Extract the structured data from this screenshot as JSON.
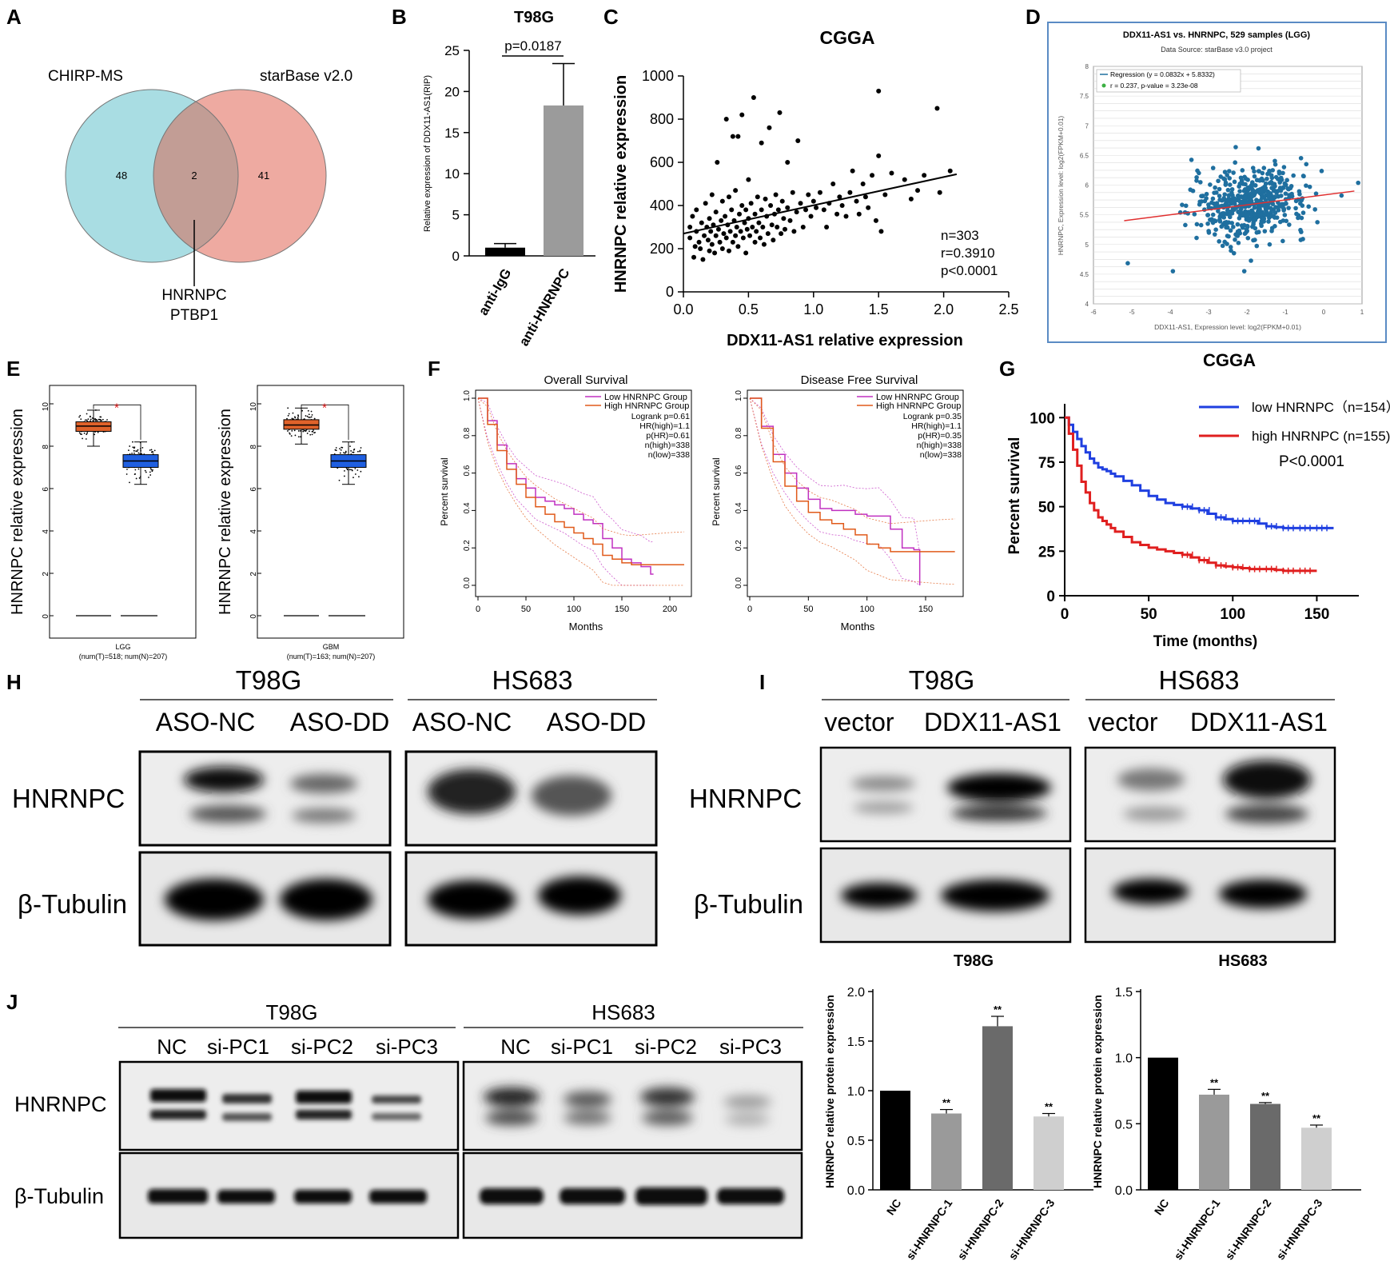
{
  "panels": {
    "A": "A",
    "B": "B",
    "C": "C",
    "D": "D",
    "E": "E",
    "F": "F",
    "G": "G",
    "H": "H",
    "I": "I",
    "J": "J"
  },
  "venn": {
    "left_label": "CHIRP-MS",
    "right_label": "starBase v2.0",
    "left_count": "48",
    "overlap_count": "2",
    "right_count": "41",
    "overlap_genes": [
      "HNRNPC",
      "PTBP1"
    ],
    "left_color": "#a9dde3",
    "right_color": "#eeaaa1",
    "overlap_color": "#c29d95"
  },
  "panelB": {
    "title": "T98G",
    "pvalue": "p=0.0187",
    "ylabel": "Relative expression of DDX11-AS1(RIP)",
    "yticks": [
      "0",
      "5",
      "10",
      "15",
      "20",
      "25"
    ]
  },
  "panelC": {
    "title": "CGGA",
    "xlabel": "DDX11-AS1 relative expression",
    "ylabel": "HNRNPC relative expression",
    "stats": [
      "n=303",
      "r=0.3910",
      "p<0.0001"
    ],
    "xticks": [
      "0.0",
      "0.5",
      "1.0",
      "1.5",
      "2.0",
      "2.5"
    ],
    "yticks": [
      "0",
      "200",
      "400",
      "600",
      "800",
      "1000"
    ]
  },
  "panelD": {
    "title": "DDX11-AS1 vs. HNRNPC, 529 samples (LGG)",
    "subtitle": "Data Source: starBase v3.0 project",
    "legend_regression": "Regression (y = 0.0832x + 5.8332)",
    "legend_r": "r = 0.237, p-value = 3.23e-08",
    "xlabel": "DDX11-AS1, Expression level: log2(FPKM+0.01)",
    "ylabel": "HNRNPC, Expression level: log2(FPKM+0.01)",
    "xticks": [
      "-6",
      "-5",
      "-4",
      "-3",
      "-2",
      "-1",
      "0",
      "1"
    ],
    "yticks": [
      "4",
      "4.5",
      "5",
      "5.5",
      "6",
      "6.5",
      "7",
      "7.5",
      "8"
    ],
    "point_color": "#1f6f9f",
    "line_color": "#e03030"
  },
  "panelE": {
    "ylabel": "HNRNPC relative expression",
    "left_xlabel": "LGG",
    "left_counts": "(num(T)=518; num(N)=207)",
    "right_xlabel": "GBM",
    "right_counts": "(num(T)=163; num(N)=207)",
    "star": "*",
    "yticks": [
      "0",
      "2",
      "4",
      "6",
      "8",
      "10"
    ],
    "tumor_color": "#e0622a",
    "normal_color": "#1f5fe0"
  },
  "panelF": {
    "title_left": "Overall Survival",
    "title_right": "Disease Free Survival",
    "legend_low": "Low HNRNPC Group",
    "legend_high": "High HNRNPC Group",
    "stats_left": [
      "Logrank p=0.61",
      "HR(high)=1.1",
      "p(HR)=0.61",
      "n(high)=338",
      "n(low)=338"
    ],
    "stats_right": [
      "Logrank p=0.35",
      "HR(high)=1.1",
      "p(HR)=0.35",
      "n(high)=338",
      "n(low)=338"
    ],
    "xlabel": "Months",
    "ylabel": "Percent survival",
    "xticks_left": [
      "0",
      "50",
      "100",
      "150",
      "200"
    ],
    "xticks_right": [
      "0",
      "50",
      "100",
      "150"
    ],
    "yticks": [
      "0.0",
      "0.2",
      "0.4",
      "0.6",
      "0.8",
      "1.0"
    ]
  },
  "panelG": {
    "title": "CGGA",
    "legend_low": "low HNRNPC（n=154）",
    "legend_high": "high HNRNPC (n=155)",
    "pvalue": "P<0.0001",
    "xlabel": "Time (months)",
    "ylabel": "Percent survival",
    "xticks": [
      "0",
      "50",
      "100",
      "150"
    ],
    "yticks": [
      "0",
      "25",
      "50",
      "75",
      "100"
    ],
    "low_color": "#1f3fe0",
    "high_color": "#e01f1f"
  },
  "panelH": {
    "cell1": "T98G",
    "cell2": "HS683",
    "lanes": [
      "ASO-NC",
      "ASO-DD",
      "ASO-NC",
      "ASO-DD"
    ],
    "row1": "HNRNPC",
    "row2": "β-Tubulin"
  },
  "panelI": {
    "cell1": "T98G",
    "cell2": "HS683",
    "lanes": [
      "vector",
      "DDX11-AS1",
      "vector",
      "DDX11-AS1"
    ],
    "row1": "HNRNPC",
    "row2": "β-Tubulin"
  },
  "panelJ": {
    "cell1": "T98G",
    "cell2": "HS683",
    "lanes1": [
      "NC",
      "si-PC1",
      "si-PC2",
      "si-PC3"
    ],
    "lanes2": [
      "NC",
      "si-PC1",
      "si-PC2",
      "si-PC3"
    ],
    "row1": "HNRNPC",
    "row2": "β-Tubulin"
  },
  "panelJbars": {
    "title1": "T98G",
    "title2": "HS683",
    "ylabel": "HNRNPC relative protein expression",
    "sig": "**",
    "yticks1": [
      "0.0",
      "0.5",
      "1.0",
      "1.5",
      "2.0"
    ],
    "yticks2": [
      "0.0",
      "0.5",
      "1.0",
      "1.5"
    ]
  },
  "chart_data": [
    {
      "type": "bar",
      "panel": "B",
      "title": "T98G",
      "categories": [
        "anti-IgG",
        "anti-HNRNPC"
      ],
      "values": [
        1.0,
        18.3
      ],
      "errors": [
        0.5,
        5.1
      ],
      "ylabel": "Relative expression of DDX11-AS1(RIP)",
      "ylim": [
        0,
        25
      ],
      "colors": [
        "#000000",
        "#9b9b9b"
      ]
    },
    {
      "type": "scatter",
      "panel": "C",
      "title": "CGGA",
      "xlabel": "DDX11-AS1 relative expression",
      "ylabel": "HNRNPC relative expression",
      "xlim": [
        0,
        2.5
      ],
      "ylim": [
        0,
        1000
      ],
      "regression": {
        "x": [
          0,
          2.1
        ],
        "y": [
          270,
          545
        ]
      },
      "points": [
        [
          0.05,
          300
        ],
        [
          0.05,
          250
        ],
        [
          0.07,
          350
        ],
        [
          0.08,
          160
        ],
        [
          0.09,
          210
        ],
        [
          0.1,
          280
        ],
        [
          0.1,
          380
        ],
        [
          0.12,
          230
        ],
        [
          0.13,
          200
        ],
        [
          0.14,
          320
        ],
        [
          0.15,
          150
        ],
        [
          0.16,
          260
        ],
        [
          0.17,
          410
        ],
        [
          0.18,
          300
        ],
        [
          0.19,
          240
        ],
        [
          0.2,
          190
        ],
        [
          0.2,
          340
        ],
        [
          0.21,
          280
        ],
        [
          0.22,
          220
        ],
        [
          0.22,
          450
        ],
        [
          0.23,
          310
        ],
        [
          0.24,
          180
        ],
        [
          0.25,
          260
        ],
        [
          0.25,
          370
        ],
        [
          0.26,
          600
        ],
        [
          0.27,
          290
        ],
        [
          0.28,
          230
        ],
        [
          0.29,
          330
        ],
        [
          0.3,
          200
        ],
        [
          0.3,
          420
        ],
        [
          0.31,
          270
        ],
        [
          0.32,
          350
        ],
        [
          0.33,
          250
        ],
        [
          0.33,
          800
        ],
        [
          0.34,
          310
        ],
        [
          0.35,
          440
        ],
        [
          0.35,
          190
        ],
        [
          0.36,
          280
        ],
        [
          0.37,
          380
        ],
        [
          0.38,
          230
        ],
        [
          0.38,
          720
        ],
        [
          0.39,
          330
        ],
        [
          0.4,
          260
        ],
        [
          0.4,
          470
        ],
        [
          0.41,
          300
        ],
        [
          0.42,
          210
        ],
        [
          0.42,
          720
        ],
        [
          0.43,
          360
        ],
        [
          0.44,
          280
        ],
        [
          0.45,
          400
        ],
        [
          0.45,
          820
        ],
        [
          0.46,
          250
        ],
        [
          0.47,
          320
        ],
        [
          0.48,
          380
        ],
        [
          0.48,
          180
        ],
        [
          0.49,
          290
        ],
        [
          0.5,
          340
        ],
        [
          0.5,
          520
        ],
        [
          0.51,
          260
        ],
        [
          0.52,
          410
        ],
        [
          0.53,
          300
        ],
        [
          0.54,
          900
        ],
        [
          0.55,
          230
        ],
        [
          0.55,
          360
        ],
        [
          0.56,
          280
        ],
        [
          0.57,
          440
        ],
        [
          0.58,
          320
        ],
        [
          0.59,
          250
        ],
        [
          0.6,
          380
        ],
        [
          0.6,
          690
        ],
        [
          0.61,
          300
        ],
        [
          0.62,
          220
        ],
        [
          0.63,
          430
        ],
        [
          0.64,
          350
        ],
        [
          0.65,
          270
        ],
        [
          0.66,
          760
        ],
        [
          0.67,
          400
        ],
        [
          0.68,
          310
        ],
        [
          0.69,
          240
        ],
        [
          0.7,
          360
        ],
        [
          0.71,
          450
        ],
        [
          0.72,
          300
        ],
        [
          0.73,
          380
        ],
        [
          0.74,
          830
        ],
        [
          0.75,
          270
        ],
        [
          0.76,
          420
        ],
        [
          0.77,
          340
        ],
        [
          0.78,
          290
        ],
        [
          0.8,
          390
        ],
        [
          0.8,
          600
        ],
        [
          0.82,
          330
        ],
        [
          0.84,
          460
        ],
        [
          0.85,
          280
        ],
        [
          0.87,
          370
        ],
        [
          0.88,
          700
        ],
        [
          0.9,
          410
        ],
        [
          0.92,
          300
        ],
        [
          0.94,
          380
        ],
        [
          0.96,
          450
        ],
        [
          0.98,
          350
        ],
        [
          1.0,
          420
        ],
        [
          1.02,
          390
        ],
        [
          1.05,
          460
        ],
        [
          1.08,
          380
        ],
        [
          1.1,
          300
        ],
        [
          1.12,
          410
        ],
        [
          1.15,
          500
        ],
        [
          1.18,
          360
        ],
        [
          1.2,
          440
        ],
        [
          1.22,
          400
        ],
        [
          1.25,
          350
        ],
        [
          1.28,
          460
        ],
        [
          1.3,
          560
        ],
        [
          1.33,
          420
        ],
        [
          1.35,
          360
        ],
        [
          1.38,
          500
        ],
        [
          1.4,
          440
        ],
        [
          1.42,
          390
        ],
        [
          1.45,
          540
        ],
        [
          1.48,
          330
        ],
        [
          1.5,
          930
        ],
        [
          1.5,
          630
        ],
        [
          1.52,
          280
        ],
        [
          1.55,
          450
        ],
        [
          1.6,
          550
        ],
        [
          1.7,
          520
        ],
        [
          1.75,
          430
        ],
        [
          1.8,
          470
        ],
        [
          1.85,
          540
        ],
        [
          1.95,
          850
        ],
        [
          1.97,
          460
        ],
        [
          2.05,
          560
        ]
      ]
    },
    {
      "type": "scatter",
      "panel": "D",
      "title": "DDX11-AS1 vs. HNRNPC, 529 samples (LGG)",
      "xlim": [
        -6,
        1
      ],
      "ylim": [
        4,
        8
      ],
      "regression": {
        "slope": 0.0832,
        "intercept": 5.8332,
        "x": [
          -5.2,
          0.8
        ]
      },
      "r": 0.237
    },
    {
      "type": "box",
      "panel": "E",
      "groups": [
        "LGG",
        "GBM"
      ],
      "boxes": [
        {
          "name": "LGG-T",
          "q1": 8.7,
          "median": 8.95,
          "q3": 9.15,
          "min": 8.0,
          "max": 9.7
        },
        {
          "name": "LGG-N",
          "q1": 7.0,
          "median": 7.3,
          "q3": 7.6,
          "min": 6.2,
          "max": 8.2
        },
        {
          "name": "GBM-T",
          "q1": 8.8,
          "median": 9.0,
          "q3": 9.25,
          "min": 8.1,
          "max": 9.8
        },
        {
          "name": "GBM-N",
          "q1": 7.0,
          "median": 7.3,
          "q3": 7.6,
          "min": 6.2,
          "max": 8.2
        }
      ],
      "ylim": [
        0,
        10
      ]
    },
    {
      "type": "line",
      "panel": "F-left",
      "title": "Overall Survival",
      "xlim": [
        0,
        220
      ],
      "ylim": [
        0,
        1
      ],
      "series": [
        {
          "name": "Low HNRNPC Group",
          "x": [
            0,
            10,
            20,
            30,
            40,
            50,
            60,
            70,
            80,
            90,
            100,
            110,
            120,
            130,
            140,
            150,
            160,
            170,
            180,
            183
          ],
          "y": [
            1.0,
            0.88,
            0.75,
            0.65,
            0.57,
            0.52,
            0.47,
            0.45,
            0.43,
            0.41,
            0.38,
            0.35,
            0.33,
            0.25,
            0.2,
            0.14,
            0.12,
            0.1,
            0.06,
            0.06
          ]
        },
        {
          "name": "High HNRNPC Group",
          "x": [
            0,
            10,
            20,
            30,
            40,
            50,
            60,
            70,
            80,
            90,
            100,
            110,
            120,
            130,
            140,
            150,
            160,
            170,
            180,
            190,
            200,
            215
          ],
          "y": [
            1.0,
            0.86,
            0.72,
            0.62,
            0.54,
            0.47,
            0.42,
            0.38,
            0.34,
            0.31,
            0.28,
            0.25,
            0.22,
            0.16,
            0.14,
            0.12,
            0.11,
            0.11,
            0.11,
            0.11,
            0.11,
            0.11
          ]
        }
      ]
    },
    {
      "type": "line",
      "panel": "F-right",
      "title": "Disease Free Survival",
      "xlim": [
        0,
        180
      ],
      "ylim": [
        0,
        1
      ],
      "series": [
        {
          "name": "Low HNRNPC Group",
          "x": [
            0,
            10,
            20,
            30,
            40,
            50,
            60,
            70,
            80,
            90,
            100,
            110,
            120,
            130,
            140,
            145
          ],
          "y": [
            1.0,
            0.85,
            0.7,
            0.6,
            0.52,
            0.46,
            0.41,
            0.4,
            0.4,
            0.38,
            0.37,
            0.37,
            0.3,
            0.2,
            0.19,
            0.0
          ]
        },
        {
          "name": "High HNRNPC Group",
          "x": [
            0,
            10,
            20,
            30,
            40,
            50,
            60,
            70,
            80,
            90,
            100,
            110,
            120,
            130,
            140,
            150,
            160,
            175
          ],
          "y": [
            1.0,
            0.84,
            0.66,
            0.53,
            0.45,
            0.39,
            0.35,
            0.33,
            0.3,
            0.27,
            0.22,
            0.2,
            0.18,
            0.18,
            0.18,
            0.18,
            0.18,
            0.18
          ]
        }
      ]
    },
    {
      "type": "line",
      "panel": "G",
      "title": "CGGA",
      "xlabel": "Time (months)",
      "ylabel": "Percent survival",
      "xlim": [
        0,
        160
      ],
      "ylim": [
        0,
        100
      ],
      "series": [
        {
          "name": "low HNRNPC（n=154）",
          "x": [
            0,
            5,
            10,
            15,
            20,
            25,
            30,
            40,
            50,
            60,
            70,
            80,
            90,
            100,
            110,
            120,
            130,
            140,
            150,
            160
          ],
          "y": [
            100,
            92,
            84,
            77,
            72,
            70,
            67,
            62,
            56,
            52,
            50,
            48,
            44,
            42,
            42,
            39,
            38,
            38,
            38,
            38
          ]
        },
        {
          "name": "high HNRNPC (n=155)",
          "x": [
            0,
            5,
            10,
            15,
            20,
            25,
            30,
            40,
            50,
            60,
            70,
            80,
            90,
            100,
            110,
            120,
            130,
            140,
            150
          ],
          "y": [
            100,
            82,
            64,
            52,
            44,
            40,
            36,
            30,
            27,
            25,
            23,
            20,
            17,
            16,
            15,
            15,
            14,
            14,
            14
          ]
        }
      ]
    },
    {
      "type": "bar",
      "panel": "J-T98G",
      "title": "T98G",
      "categories": [
        "NC",
        "si-HNRNPC-1",
        "si-HNRNPC-2",
        "si-HNRNPC-3"
      ],
      "values": [
        1.0,
        0.77,
        1.65,
        0.74
      ],
      "errors": [
        0,
        0.04,
        0.1,
        0.03
      ],
      "ylim": [
        0,
        2
      ],
      "colors": [
        "#000000",
        "#9a9a9a",
        "#6a6a6a",
        "#cfcfcf"
      ]
    },
    {
      "type": "bar",
      "panel": "J-HS683",
      "title": "HS683",
      "categories": [
        "NC",
        "si-HNRNPC-1",
        "si-HNRNPC-2",
        "si-HNRNPC-3"
      ],
      "values": [
        1.0,
        0.72,
        0.65,
        0.47
      ],
      "errors": [
        0,
        0.04,
        0.01,
        0.02
      ],
      "ylim": [
        0,
        1.5
      ],
      "colors": [
        "#000000",
        "#9a9a9a",
        "#6a6a6a",
        "#cfcfcf"
      ]
    }
  ]
}
